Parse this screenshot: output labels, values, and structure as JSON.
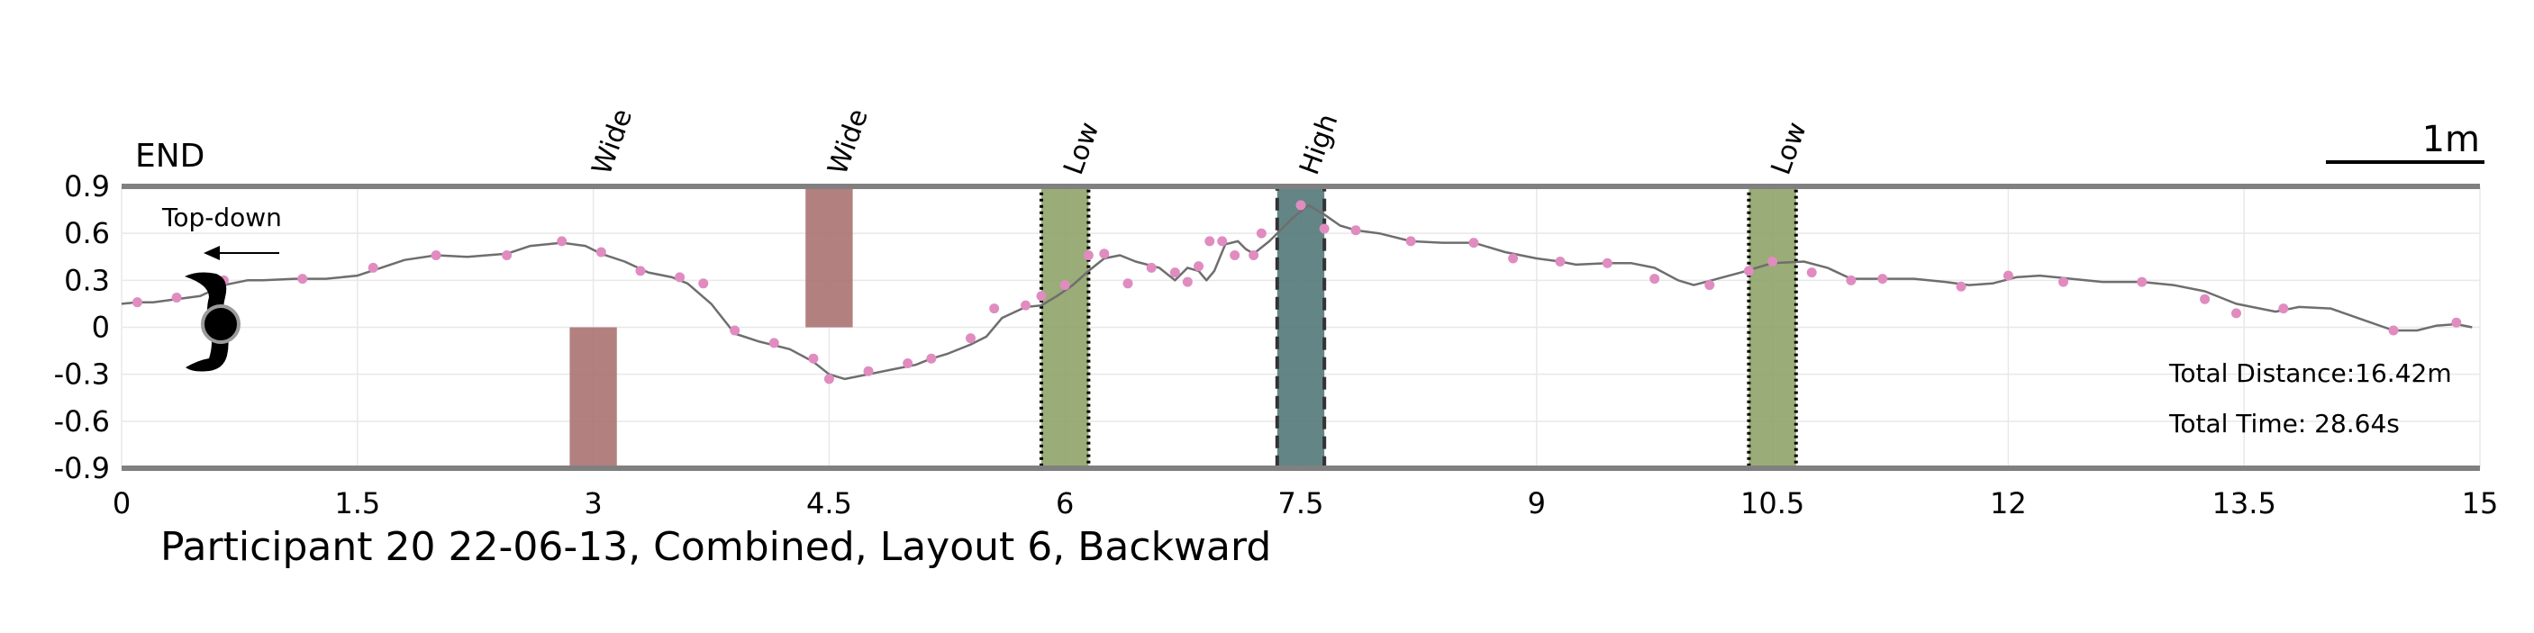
{
  "chart_data": {
    "type": "line",
    "title": "Participant 20 22-06-13, Combined, Layout 6, Backward",
    "end_label": "END",
    "view_label": "Top-down",
    "scale_bar_label": "1m",
    "total_distance": "Total Distance:16.42m",
    "total_time": "Total Time: 28.64s",
    "xlim": [
      0,
      15
    ],
    "ylim": [
      -0.9,
      0.9
    ],
    "xticks": [
      "0",
      "1.5",
      "3",
      "4.5",
      "6",
      "7.5",
      "9",
      "10.5",
      "12",
      "13.5",
      "15"
    ],
    "yticks": [
      "0.9",
      "0.6",
      "0.3",
      "0",
      "-0.3",
      "-0.6",
      "-0.9"
    ],
    "grid": true,
    "colors": {
      "path": "#6e6e6e",
      "points": "#e08cc0",
      "wide": "#a86e6e",
      "low": "#8ca064",
      "high": "#4f7474",
      "border": "#808080"
    },
    "obstacles": [
      {
        "label": "",
        "type": "wide",
        "x0": 2.85,
        "x1": 3.15,
        "y0": -0.9,
        "y1": 0.0
      },
      {
        "label": "Wide",
        "type": "wide",
        "x0": 4.35,
        "x1": 4.65,
        "y0": 0.0,
        "y1": 0.9
      },
      {
        "label": "Low",
        "type": "low",
        "x0": 5.85,
        "x1": 6.15,
        "y0": -0.9,
        "y1": 0.9
      },
      {
        "label": "High",
        "type": "high",
        "x0": 7.35,
        "x1": 7.65,
        "y0": -0.9,
        "y1": 0.9
      },
      {
        "label": "Low",
        "type": "low",
        "x0": 10.35,
        "x1": 10.65,
        "y0": -0.9,
        "y1": 0.9
      }
    ],
    "obstacle_top_labels": [
      {
        "text": "Wide",
        "x": 3.1
      },
      {
        "text": "Wide",
        "x": 4.6
      },
      {
        "text": "Low",
        "x": 6.1
      },
      {
        "text": "High",
        "x": 7.6
      },
      {
        "text": "Low",
        "x": 10.6
      }
    ],
    "series": [
      {
        "x": [
          0.0,
          0.1,
          0.2,
          0.35,
          0.5,
          0.65,
          0.8,
          0.9,
          1.1,
          1.3,
          1.5,
          1.65,
          1.8,
          2.0,
          2.2,
          2.45,
          2.6,
          2.8,
          2.95,
          3.05,
          3.2,
          3.35,
          3.5,
          3.6,
          3.75,
          3.9,
          4.05,
          4.25,
          4.4,
          4.5,
          4.6,
          4.75,
          4.9,
          5.05,
          5.15,
          5.25,
          5.4,
          5.5,
          5.6,
          5.75,
          5.85,
          5.95,
          6.05,
          6.15,
          6.25,
          6.35,
          6.45,
          6.6,
          6.7,
          6.78,
          6.85,
          6.9,
          6.95,
          7.02,
          7.1,
          7.15,
          7.2,
          7.3,
          7.45,
          7.55,
          7.65,
          7.75,
          7.85,
          8.0,
          8.2,
          8.4,
          8.6,
          8.8,
          9.0,
          9.15,
          9.25,
          9.45,
          9.6,
          9.75,
          9.9,
          10.0,
          10.15,
          10.3,
          10.5,
          10.7,
          10.85,
          11.0,
          11.2,
          11.4,
          11.6,
          11.75,
          11.9,
          12.05,
          12.2,
          12.4,
          12.6,
          12.85,
          13.05,
          13.25,
          13.45,
          13.7,
          13.85,
          14.05,
          14.25,
          14.45,
          14.6,
          14.72,
          14.85,
          14.95
        ],
        "y": [
          0.15,
          0.16,
          0.16,
          0.18,
          0.2,
          0.27,
          0.3,
          0.3,
          0.31,
          0.31,
          0.33,
          0.38,
          0.43,
          0.46,
          0.45,
          0.47,
          0.52,
          0.54,
          0.52,
          0.47,
          0.42,
          0.35,
          0.32,
          0.28,
          0.15,
          -0.04,
          -0.09,
          -0.14,
          -0.22,
          -0.3,
          -0.33,
          -0.3,
          -0.27,
          -0.24,
          -0.2,
          -0.17,
          -0.11,
          -0.06,
          0.06,
          0.13,
          0.14,
          0.2,
          0.27,
          0.36,
          0.44,
          0.46,
          0.42,
          0.38,
          0.3,
          0.38,
          0.36,
          0.3,
          0.36,
          0.53,
          0.55,
          0.5,
          0.47,
          0.55,
          0.7,
          0.78,
          0.72,
          0.65,
          0.62,
          0.6,
          0.55,
          0.54,
          0.54,
          0.48,
          0.44,
          0.42,
          0.4,
          0.41,
          0.41,
          0.38,
          0.3,
          0.27,
          0.31,
          0.35,
          0.41,
          0.42,
          0.38,
          0.31,
          0.31,
          0.31,
          0.29,
          0.27,
          0.28,
          0.32,
          0.33,
          0.31,
          0.29,
          0.29,
          0.27,
          0.23,
          0.15,
          0.1,
          0.13,
          0.12,
          0.05,
          -0.02,
          -0.02,
          0.01,
          0.02,
          0.0
        ]
      }
    ],
    "points": {
      "x": [
        0.1,
        0.35,
        0.65,
        1.15,
        1.6,
        2.0,
        2.45,
        2.8,
        3.05,
        3.3,
        3.55,
        3.7,
        3.9,
        4.15,
        4.4,
        4.5,
        4.75,
        5.0,
        5.15,
        5.4,
        5.55,
        5.75,
        5.85,
        6.0,
        6.15,
        6.25,
        6.4,
        6.55,
        6.7,
        6.78,
        6.85,
        6.92,
        7.0,
        7.08,
        7.2,
        7.25,
        7.5,
        7.65,
        7.85,
        8.2,
        8.6,
        8.85,
        9.15,
        9.45,
        9.75,
        10.1,
        10.35,
        10.5,
        10.75,
        11.0,
        11.2,
        11.7,
        12.0,
        12.35,
        12.85,
        13.25,
        13.45,
        13.75,
        14.45,
        14.85
      ],
      "y": [
        0.16,
        0.19,
        0.3,
        0.31,
        0.38,
        0.46,
        0.46,
        0.55,
        0.48,
        0.36,
        0.32,
        0.28,
        -0.02,
        -0.1,
        -0.2,
        -0.33,
        -0.28,
        -0.23,
        -0.2,
        -0.07,
        0.12,
        0.14,
        0.2,
        0.27,
        0.46,
        0.47,
        0.28,
        0.38,
        0.35,
        0.29,
        0.39,
        0.55,
        0.55,
        0.46,
        0.46,
        0.6,
        0.78,
        0.63,
        0.62,
        0.55,
        0.54,
        0.44,
        0.42,
        0.41,
        0.31,
        0.27,
        0.36,
        0.42,
        0.35,
        0.3,
        0.31,
        0.26,
        0.33,
        0.29,
        0.29,
        0.18,
        0.09,
        0.12,
        -0.02,
        0.03
      ]
    }
  }
}
